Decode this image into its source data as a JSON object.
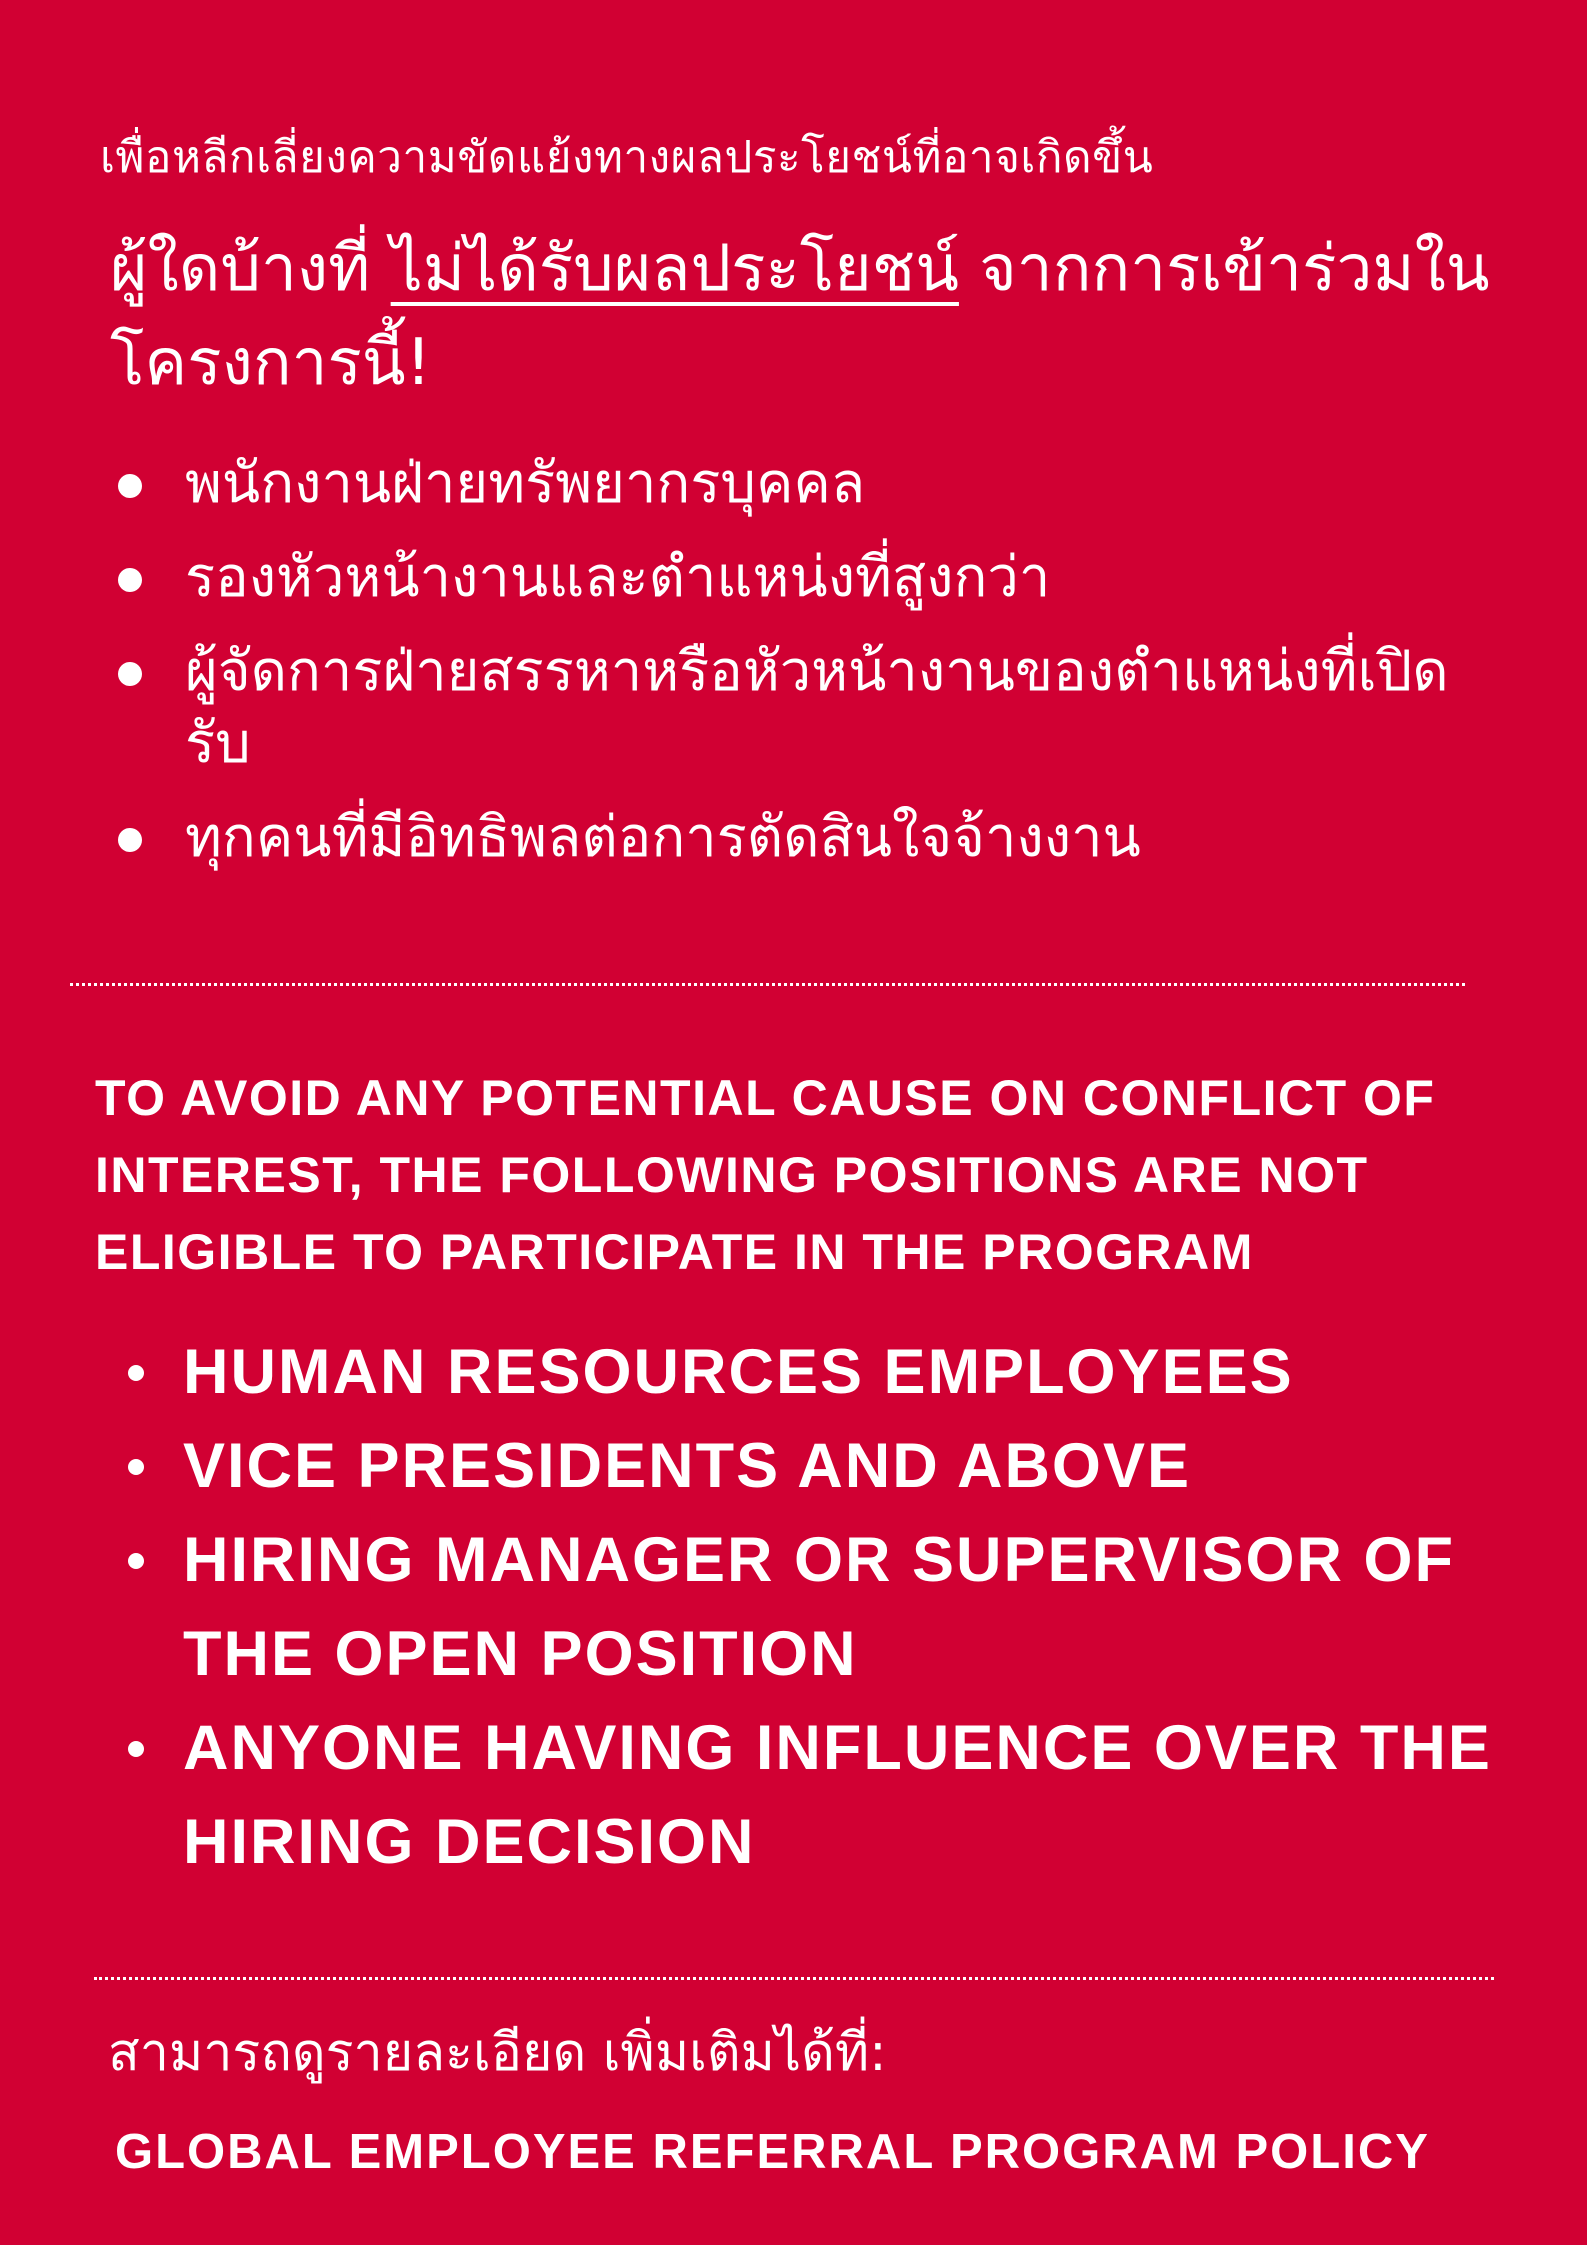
{
  "colors": {
    "background": "#d10033",
    "text": "#ffffff"
  },
  "thai": {
    "intro": "เพื่อหลีกเลี่ยงความขัดแย้งทางผลประโยชน์ที่อาจเกิดขึ้น",
    "heading_prefix": "ผู้ใดบ้างที่ ",
    "heading_highlight": "ไม่ได้รับผลประโยชน์",
    "heading_suffix": " จากการเข้าร่วมในโครงการนี้!",
    "items": [
      "พนักงานฝ่ายทรัพยากรบุคคล",
      "รองหัวหน้างานและตำแหน่งที่สูงกว่า",
      "ผู้จัดการฝ่ายสรรหาหรือหัวหน้างานของตำแหน่งที่เปิดรับ",
      "ทุกคนที่มีอิทธิพลต่อการตัดสินใจจ้างงาน"
    ]
  },
  "english": {
    "intro": "TO AVOID ANY POTENTIAL CAUSE ON CONFLICT OF INTEREST, THE FOLLOWING POSITIONS ARE NOT ELIGIBLE TO PARTICIPATE IN THE PROGRAM",
    "items": [
      "HUMAN RESOURCES EMPLOYEES",
      "VICE PRESIDENTS AND ABOVE",
      "HIRING MANAGER OR SUPERVISOR OF THE OPEN POSITION",
      "ANYONE HAVING INFLUENCE OVER THE HIRING DECISION"
    ]
  },
  "footer": {
    "more_info": "สามารถดูรายละเอียด เพิ่มเติมได้ที่:",
    "policy_link": "GLOBAL EMPLOYEE REFERRAL PROGRAM POLICY"
  }
}
